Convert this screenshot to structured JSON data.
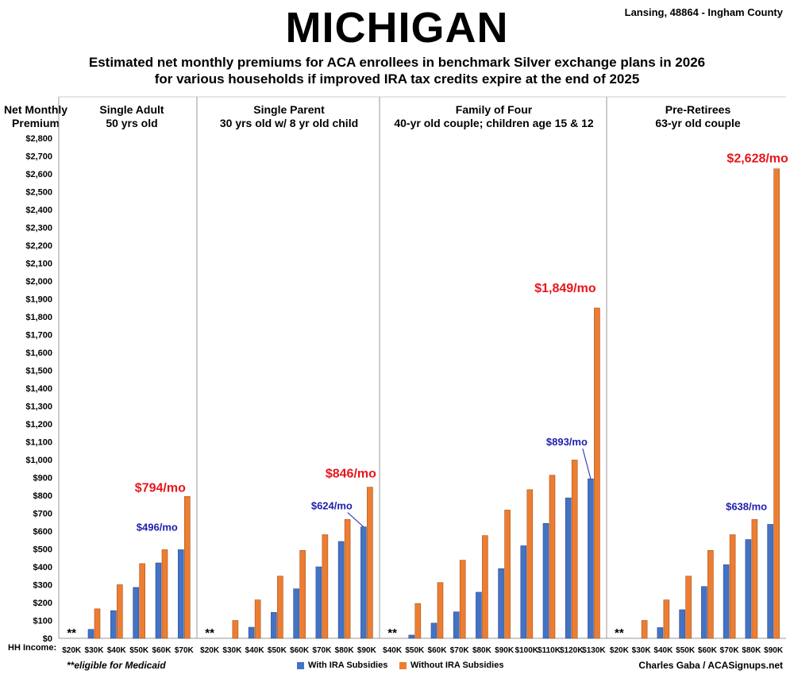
{
  "header": {
    "title": "MICHIGAN",
    "location": "Lansing, 48864 - Ingham County",
    "subtitle_line1": "Estimated net monthly premiums for ACA enrollees in benchmark Silver exchange plans in 2026",
    "subtitle_line2": "for various households if improved IRA tax credits expire at the end of 2025"
  },
  "axis": {
    "ylabel_line1": "Net Monthly",
    "ylabel_line2": "Premium",
    "hh_income_label": "HH Income:"
  },
  "footer": {
    "footnote": "**eligible for Medicaid",
    "legend_with": "With IRA Subsidies",
    "legend_without": "Without IRA Subsidies",
    "credit": "Charles Gaba / ACASignups.net"
  },
  "colors": {
    "with": "#4472c4",
    "without": "#ed7d31",
    "annotation_red": "#e8151b",
    "annotation_blue": "#1f1fae"
  },
  "chart_data": {
    "type": "bar",
    "ylim": [
      0,
      2800
    ],
    "ytick_step": 100,
    "y_tick_format": "$#,###",
    "legend": "bottom-center",
    "series_names": [
      "With IRA Subsidies",
      "Without IRA Subsidies"
    ],
    "panels": [
      {
        "title_line1": "Single Adult",
        "title_line2": "50 yrs old",
        "categories": [
          "$20K",
          "$30K",
          "$40K",
          "$50K",
          "$60K",
          "$70K"
        ],
        "with": [
          0,
          50,
          155,
          285,
          422,
          496
        ],
        "without": [
          0,
          165,
          300,
          418,
          496,
          794
        ],
        "medicaid_marker": "**",
        "annotation_without": "$794/mo",
        "annotation_with": "$496/mo"
      },
      {
        "title_line1": "Single Parent",
        "title_line2": "30 yrs old w/ 8 yr old child",
        "categories": [
          "$20K",
          "$30K",
          "$40K",
          "$50K",
          "$60K",
          "$70K",
          "$80K",
          "$90K"
        ],
        "with": [
          0,
          0,
          62,
          145,
          277,
          400,
          542,
          624
        ],
        "without": [
          0,
          100,
          215,
          348,
          492,
          580,
          665,
          846
        ],
        "medicaid_marker": "**",
        "annotation_without": "$846/mo",
        "annotation_with": "$624/mo"
      },
      {
        "title_line1": "Family of Four",
        "title_line2": "40-yr old couple; children age 15 & 12",
        "categories": [
          "$40K",
          "$50K",
          "$60K",
          "$70K",
          "$80K",
          "$90K",
          "$100K",
          "$110K",
          "$120K",
          "$130K"
        ],
        "with": [
          0,
          18,
          85,
          148,
          258,
          390,
          518,
          643,
          786,
          893
        ],
        "without": [
          0,
          195,
          312,
          437,
          575,
          718,
          832,
          913,
          998,
          1849
        ],
        "medicaid_marker": "**",
        "annotation_without": "$1,849/mo",
        "annotation_with": "$893/mo"
      },
      {
        "title_line1": "Pre-Retirees",
        "title_line2": "63-yr old couple",
        "categories": [
          "$20K",
          "$30K",
          "$40K",
          "$50K",
          "$60K",
          "$70K",
          "$80K",
          "$90K"
        ],
        "with": [
          0,
          0,
          60,
          160,
          290,
          412,
          553,
          638
        ],
        "without": [
          0,
          100,
          215,
          348,
          492,
          580,
          665,
          2628
        ],
        "medicaid_marker": "**",
        "annotation_without": "$2,628/mo",
        "annotation_with": "$638/mo"
      }
    ]
  }
}
